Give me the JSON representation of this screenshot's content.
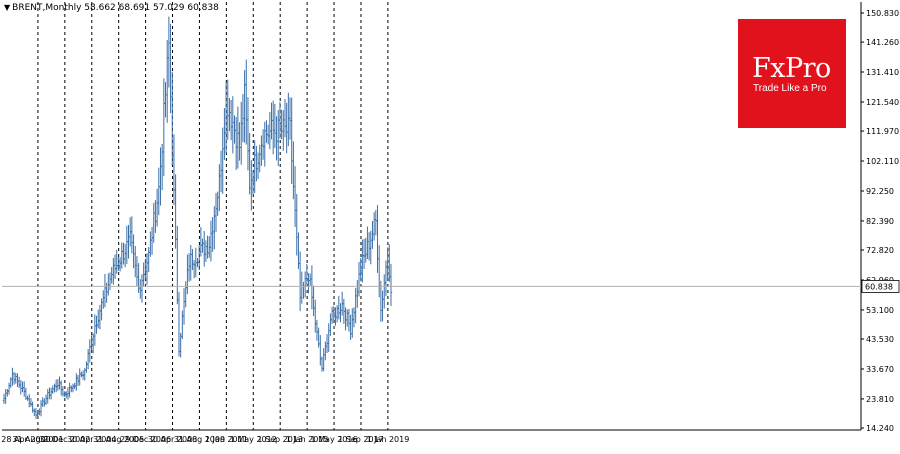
{
  "header": {
    "symbol": "BRENT,Monthly",
    "values": "58.662 68.691 57.029 60.838",
    "menu_icon": "triangle-down-icon"
  },
  "logo": {
    "brand": "FxPro",
    "tagline": "Trade Like a Pro",
    "color": "#e2121d"
  },
  "chart_data": {
    "type": "ohlc",
    "title": "BRENT,Monthly",
    "series_color": "#3a6fa8",
    "grid": "vertical-dashed",
    "current_price": 60.838,
    "current_price_label": "60.838",
    "ylim": [
      14.24,
      150.83
    ],
    "y_ticks": [
      "150.830",
      "141.260",
      "131.410",
      "121.540",
      "111.970",
      "102.110",
      "92.250",
      "82.390",
      "72.820",
      "62.960",
      "53.100",
      "43.530",
      "33.670",
      "23.810",
      "14.240"
    ],
    "x_ticks": [
      "28 Apr 2000",
      "31 Aug 2001",
      "31 Dec 2002",
      "30 Apr 2004",
      "31 Aug 2005",
      "29 Dec 2006",
      "30 Apr 2008",
      "31 Aug 2009",
      "1 Jan 2011",
      "1 May 2012",
      "1 Sep 2013",
      "1 Jan 2015",
      "1 May 2016",
      "1 Sep 2017",
      "1 Jan 2019"
    ],
    "close_anchors": [
      [
        "2000-04",
        24.0
      ],
      [
        "2000-09",
        32.0
      ],
      [
        "2001-04",
        26.0
      ],
      [
        "2001-11",
        18.5
      ],
      [
        "2002-06",
        25.0
      ],
      [
        "2002-12",
        29.0
      ],
      [
        "2003-04",
        25.0
      ],
      [
        "2004-04",
        33.0
      ],
      [
        "2004-10",
        48.0
      ],
      [
        "2005-08",
        65.0
      ],
      [
        "2006-07",
        76.0
      ],
      [
        "2006-12",
        60.0
      ],
      [
        "2007-06",
        71.0
      ],
      [
        "2007-12",
        93.0
      ],
      [
        "2008-06",
        140.0
      ],
      [
        "2008-12",
        41.0
      ],
      [
        "2009-06",
        69.0
      ],
      [
        "2010-06",
        75.0
      ],
      [
        "2010-12",
        95.0
      ],
      [
        "2011-04",
        123.0
      ],
      [
        "2011-12",
        107.0
      ],
      [
        "2012-03",
        123.0
      ],
      [
        "2012-06",
        95.0
      ],
      [
        "2013-02",
        111.0
      ],
      [
        "2013-08",
        112.0
      ],
      [
        "2014-06",
        112.0
      ],
      [
        "2014-12",
        57.0
      ],
      [
        "2015-05",
        65.0
      ],
      [
        "2015-12",
        37.0
      ],
      [
        "2016-01",
        34.0
      ],
      [
        "2016-06",
        50.0
      ],
      [
        "2017-01",
        55.0
      ],
      [
        "2017-06",
        47.0
      ],
      [
        "2017-12",
        67.0
      ],
      [
        "2018-09",
        82.0
      ],
      [
        "2018-12",
        53.0
      ],
      [
        "2019-04",
        72.0
      ],
      [
        "2019-06",
        61.0
      ]
    ]
  }
}
